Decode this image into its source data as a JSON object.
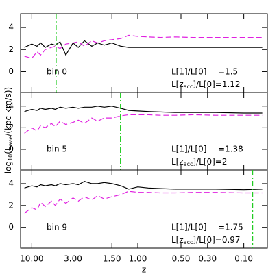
{
  "figure": {
    "ylabel": {
      "prefix": "log",
      "sub1": "10",
      "mid": "(L",
      "sub2": "ave",
      "suffix": "/(kpc km/s))"
    }
  },
  "chart_data": [
    {
      "type": "line",
      "xscale": "scale-factor",
      "x": [
        15,
        10,
        8,
        7,
        6,
        5,
        4.5,
        4,
        3.5,
        3,
        2.7,
        2.4,
        2.1,
        1.9,
        1.7,
        1.5,
        1.3,
        1.15,
        1.0,
        0.85,
        0.7,
        0.55,
        0.4,
        0.25,
        0.1,
        0.02
      ],
      "ylim": [
        -1.9,
        5.25
      ],
      "yticks": [
        0,
        2,
        4
      ],
      "series": [
        {
          "color": "#000000",
          "dash": "solid",
          "values": [
            2.2,
            2.5,
            2.3,
            2.6,
            2.2,
            2.5,
            2.4,
            2.7,
            1.5,
            2.6,
            2.2,
            2.8,
            2.3,
            2.6,
            2.4,
            2.6,
            2.3,
            2.2,
            2.2,
            2.2,
            2.2,
            2.2,
            2.2,
            2.2,
            2.2,
            2.2
          ]
        },
        {
          "color": "#e020e0",
          "dash": "dashed",
          "values": [
            1.4,
            1.2,
            1.8,
            1.5,
            2.0,
            2.2,
            2.3,
            2.1,
            2.5,
            2.6,
            2.7,
            2.3,
            2.8,
            2.6,
            2.8,
            2.9,
            3.0,
            3.3,
            3.2,
            3.15,
            3.1,
            3.15,
            3.1,
            3.1,
            3.1,
            3.1
          ]
        }
      ],
      "vline": {
        "x": 4.4,
        "color": "#22cc22"
      },
      "annotations": {
        "bin": "bin 0",
        "ratio_label": "L[1]/L[0]",
        "ratio_value": "=1.5",
        "acc_prefix": "L[z",
        "acc_sub": "acc",
        "acc_suffix": "]/L[0]=1.12"
      }
    },
    {
      "type": "line",
      "xscale": "scale-factor",
      "x": [
        15,
        10,
        8,
        7,
        6,
        5,
        4.5,
        4,
        3.5,
        3,
        2.7,
        2.4,
        2.1,
        1.9,
        1.7,
        1.5,
        1.3,
        1.15,
        1.0,
        0.85,
        0.7,
        0.55,
        0.4,
        0.25,
        0.1,
        0.02
      ],
      "ylim": [
        -1.9,
        5.25
      ],
      "yticks": [
        0,
        2,
        4
      ],
      "series": [
        {
          "color": "#000000",
          "dash": "solid",
          "values": [
            3.5,
            3.7,
            3.6,
            3.8,
            3.7,
            3.8,
            3.7,
            3.9,
            3.8,
            3.9,
            3.8,
            3.9,
            3.9,
            4.0,
            3.9,
            4.0,
            3.8,
            3.6,
            3.55,
            3.5,
            3.45,
            3.4,
            3.4,
            3.4,
            3.35,
            3.35
          ]
        },
        {
          "color": "#e020e0",
          "dash": "dashed",
          "values": [
            1.5,
            2.0,
            1.7,
            2.2,
            2.0,
            2.4,
            2.1,
            2.6,
            2.3,
            2.5,
            2.7,
            2.4,
            2.9,
            2.6,
            2.9,
            2.9,
            3.1,
            3.2,
            3.2,
            3.2,
            3.15,
            3.15,
            3.2,
            3.15,
            3.15,
            3.15
          ]
        }
      ],
      "vline": {
        "x": 1.31,
        "color": "#22cc22"
      },
      "annotations": {
        "bin": "bin 5",
        "ratio_label": "L[1]/L[0]",
        "ratio_value": "=1.38",
        "acc_prefix": "L[z",
        "acc_sub": "acc",
        "acc_suffix": "]/L[0]=2"
      }
    },
    {
      "type": "line",
      "xscale": "scale-factor",
      "x": [
        15,
        10,
        8,
        7,
        6,
        5,
        4.5,
        4,
        3.5,
        3,
        2.7,
        2.4,
        2.1,
        1.9,
        1.7,
        1.5,
        1.3,
        1.15,
        1.0,
        0.85,
        0.7,
        0.55,
        0.4,
        0.25,
        0.1,
        0.02
      ],
      "xlim": [
        20,
        0
      ],
      "xlabel": "z",
      "xticks": [
        {
          "value": 10,
          "label": "10.00"
        },
        {
          "value": 3,
          "label": "3.00"
        },
        {
          "value": 1.5,
          "label": "1.50"
        },
        {
          "value": 1,
          "label": "1.00"
        },
        {
          "value": 0.5,
          "label": "0.50"
        },
        {
          "value": 0.3,
          "label": "0.30"
        },
        {
          "value": 0.1,
          "label": "0.10"
        }
      ],
      "ylim": [
        -1.9,
        5.25
      ],
      "yticks": [
        0,
        2,
        4
      ],
      "series": [
        {
          "color": "#000000",
          "dash": "solid",
          "values": [
            3.6,
            3.8,
            3.7,
            3.9,
            3.8,
            3.9,
            3.8,
            4.0,
            3.9,
            4.0,
            3.9,
            4.2,
            4.0,
            4.0,
            4.1,
            4.0,
            3.8,
            3.5,
            3.7,
            3.6,
            3.55,
            3.5,
            3.5,
            3.5,
            3.45,
            3.5
          ]
        },
        {
          "color": "#e020e0",
          "dash": "dashed",
          "values": [
            1.3,
            1.8,
            1.6,
            2.3,
            1.9,
            2.4,
            2.0,
            2.6,
            2.2,
            2.7,
            2.4,
            2.8,
            2.5,
            2.9,
            2.6,
            2.8,
            3.0,
            3.3,
            3.2,
            3.2,
            3.15,
            3.15,
            3.2,
            3.2,
            3.15,
            3.15
          ]
        }
      ],
      "vline": {
        "x": 0.06,
        "color": "#22cc22"
      },
      "annotations": {
        "bin": "bin 9",
        "ratio_label": "L[1]/L[0]",
        "ratio_value": "=1.75",
        "acc_prefix": "L[z",
        "acc_sub": "acc",
        "acc_suffix": "]/L[0]=0.97"
      }
    }
  ]
}
